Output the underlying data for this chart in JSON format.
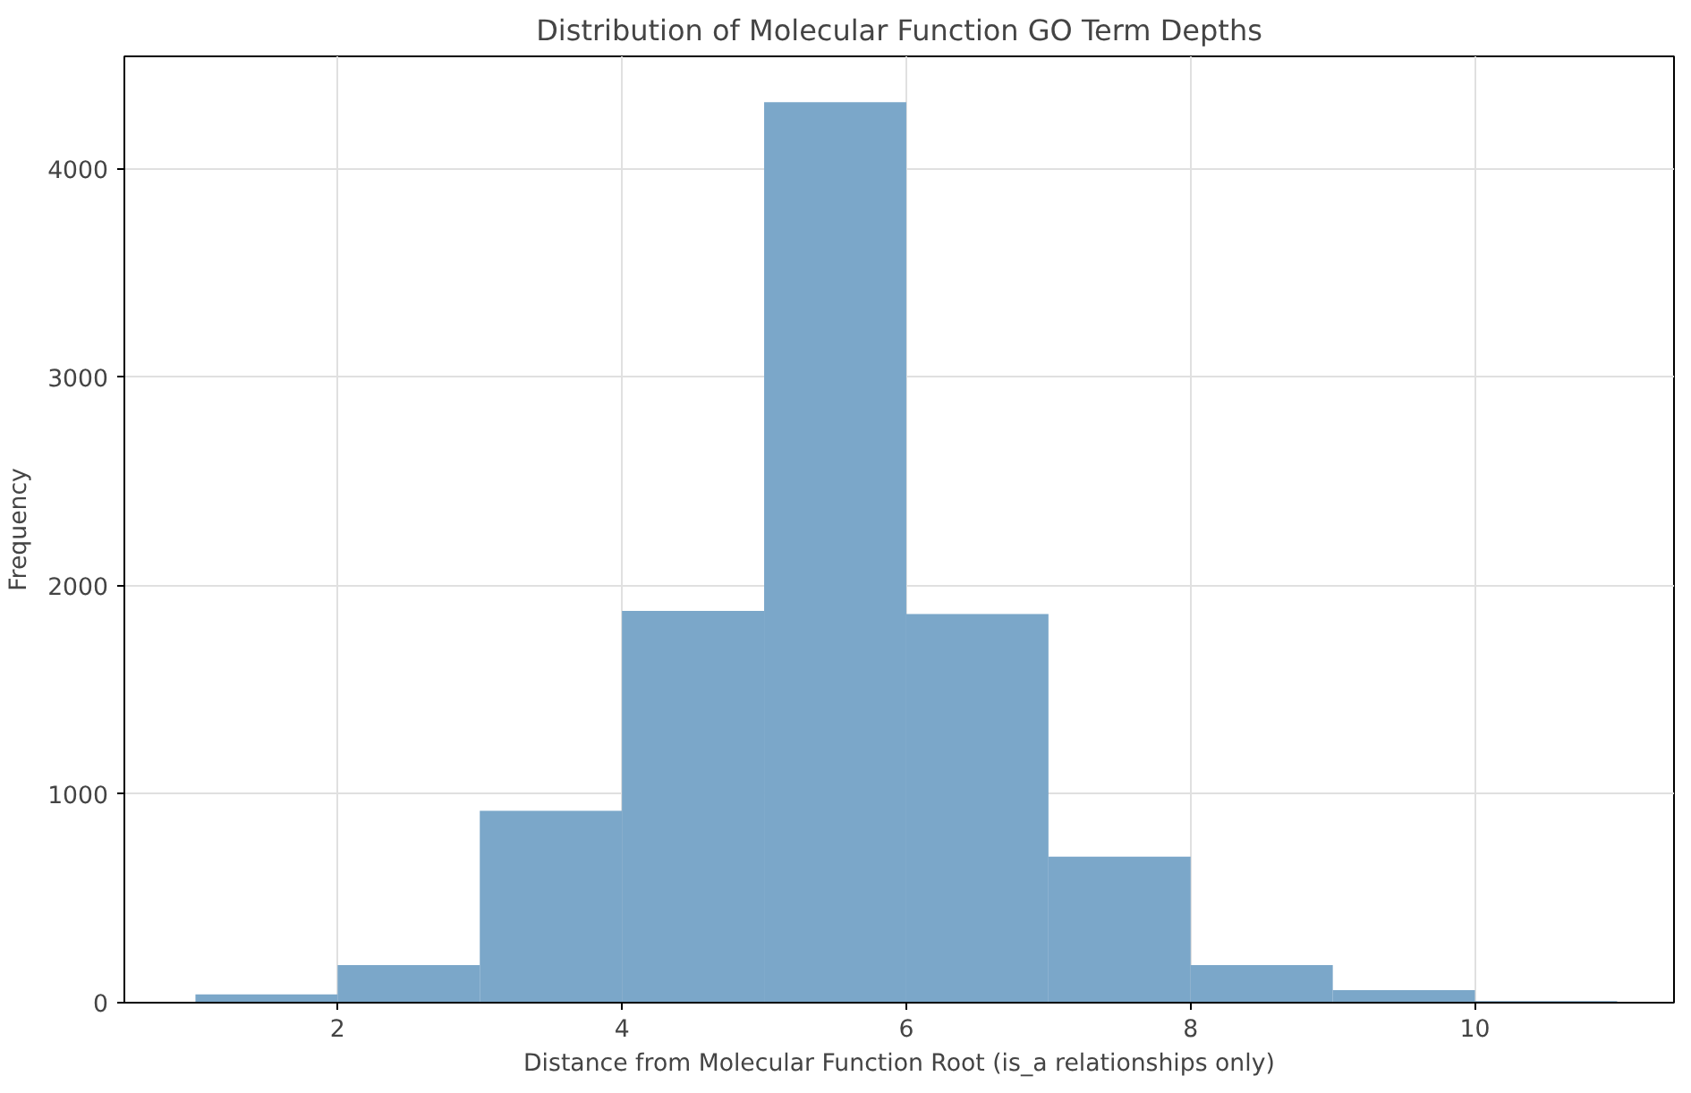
{
  "chart_data": {
    "type": "histogram",
    "title": "Distribution of Molecular Function GO Term Depths",
    "xlabel": "Distance from Molecular Function Root (is_a relationships only)",
    "ylabel": "Frequency",
    "bins": [
      1,
      2,
      3,
      4,
      5,
      6,
      7,
      8,
      9,
      10,
      11
    ],
    "values": [
      40,
      180,
      920,
      1880,
      4320,
      1865,
      700,
      180,
      60,
      8
    ],
    "color": "#7ba7c9",
    "xlim": [
      0.5,
      11.4
    ],
    "ylim": [
      0,
      4540
    ],
    "xticks": [
      2,
      4,
      6,
      8,
      10
    ],
    "yticks": [
      0,
      1000,
      2000,
      3000,
      4000
    ],
    "grid": true
  }
}
